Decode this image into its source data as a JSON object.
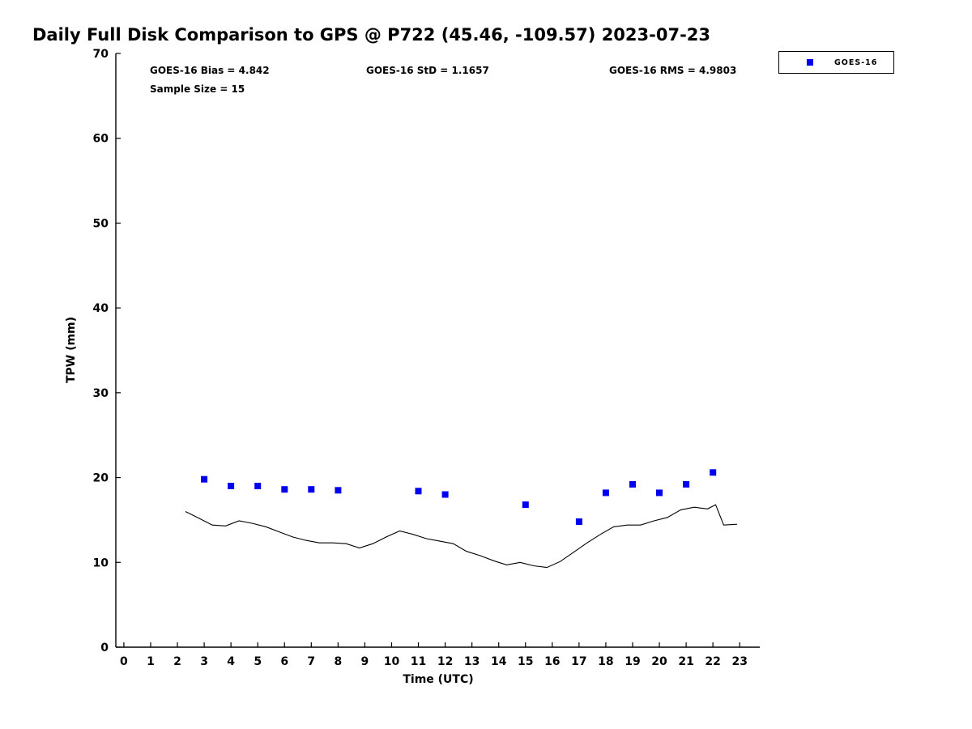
{
  "annotations": {
    "bias": "GOES-16 Bias = 4.842",
    "std": "GOES-16 StD = 1.1657",
    "rms": "GOES-16 RMS = 4.9803",
    "sample_size": "Sample Size = 15"
  },
  "legend": {
    "items": [
      {
        "label": "GOES-16",
        "marker": "square",
        "marker_color": "#0000ee"
      }
    ]
  },
  "chart_data": {
    "type": "scatter",
    "title": "Daily Full Disk Comparison to GPS @ P722 (45.46, -109.57) 2023-07-23",
    "xlabel": "Time (UTC)",
    "ylabel": "TPW (mm)",
    "xlim": [
      -0.3,
      23.75
    ],
    "ylim": [
      0,
      70
    ],
    "xticks": [
      0,
      1,
      2,
      3,
      4,
      5,
      6,
      7,
      8,
      9,
      10,
      11,
      12,
      13,
      14,
      15,
      16,
      17,
      18,
      19,
      20,
      21,
      22,
      23
    ],
    "yticks": [
      0,
      10,
      20,
      30,
      40,
      50,
      60,
      70
    ],
    "grid": false,
    "legend_position": "top-right-outside",
    "series": [
      {
        "name": "GOES-16",
        "type": "scatter",
        "marker": "square",
        "color": "#0000ee",
        "x": [
          3,
          4,
          5,
          6,
          7,
          8,
          11,
          12,
          15,
          17,
          18,
          19,
          20,
          21,
          22
        ],
        "y": [
          19.8,
          19.0,
          19.0,
          18.6,
          18.6,
          18.5,
          18.4,
          18.0,
          16.8,
          14.8,
          18.2,
          19.2,
          18.2,
          19.2,
          20.6
        ]
      },
      {
        "name": "GPS",
        "type": "line",
        "color": "#000000",
        "x": [
          2.3,
          2.8,
          3.3,
          3.8,
          4.3,
          4.8,
          5.3,
          5.8,
          6.3,
          6.8,
          7.3,
          7.8,
          8.3,
          8.8,
          9.3,
          9.8,
          10.3,
          10.8,
          11.3,
          11.8,
          12.3,
          12.8,
          13.3,
          13.8,
          14.3,
          14.8,
          15.3,
          15.8,
          16.3,
          16.8,
          17.3,
          17.8,
          18.3,
          18.8,
          19.3,
          19.8,
          20.3,
          20.8,
          21.3,
          21.8,
          22.1,
          22.4,
          22.9
        ],
        "y": [
          16.0,
          15.2,
          14.4,
          14.3,
          14.9,
          14.6,
          14.2,
          13.6,
          13.0,
          12.6,
          12.3,
          12.3,
          12.2,
          11.7,
          12.2,
          13.0,
          13.7,
          13.3,
          12.8,
          12.5,
          12.2,
          11.3,
          10.8,
          10.2,
          9.7,
          10.0,
          9.6,
          9.4,
          10.1,
          11.2,
          12.3,
          13.3,
          14.2,
          14.4,
          14.4,
          14.9,
          15.3,
          16.2,
          16.5,
          16.3,
          16.8,
          14.4,
          14.5
        ]
      }
    ]
  }
}
